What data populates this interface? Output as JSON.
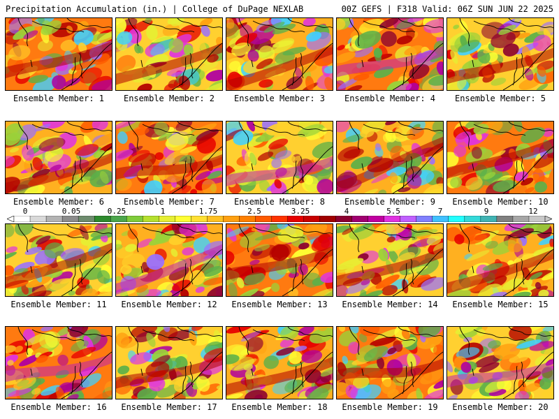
{
  "header": {
    "left": "Precipitation Accumulation (in.) | College of DuPage NEXLAB",
    "right": "00Z GEFS | F318 Valid: 06Z SUN JUN 22 2025"
  },
  "colorbar": {
    "tick_labels": [
      "0",
      "0.05",
      "0.25",
      "1",
      "1.75",
      "2.5",
      "3.25",
      "4",
      "5.5",
      "7",
      "9",
      "12"
    ],
    "colors": [
      "#ffffff",
      "#d9d9d9",
      "#b3b3b3",
      "#8c8c8c",
      "#6e8c6e",
      "#2e8b2e",
      "#4ca64c",
      "#7fcc3a",
      "#b5e02e",
      "#e6ef33",
      "#ffff33",
      "#ffe033",
      "#ffc022",
      "#ffa011",
      "#ff7f00",
      "#ff5a00",
      "#ff3300",
      "#e60000",
      "#c80000",
      "#a00000",
      "#8c0030",
      "#a00070",
      "#c000a0",
      "#e033e0",
      "#c060ff",
      "#8080ff",
      "#40c0ff",
      "#22ffff",
      "#33d9d9",
      "#40b3b3",
      "#808080",
      "#a6a6a6",
      "#c8c8c8"
    ]
  },
  "panels": [
    {
      "label": "Ensemble Member: 1"
    },
    {
      "label": "Ensemble Member: 2"
    },
    {
      "label": "Ensemble Member: 3"
    },
    {
      "label": "Ensemble Member: 4"
    },
    {
      "label": "Ensemble Member: 5"
    },
    {
      "label": "Ensemble Member: 6"
    },
    {
      "label": "Ensemble Member: 7"
    },
    {
      "label": "Ensemble Member: 8"
    },
    {
      "label": "Ensemble Member: 9"
    },
    {
      "label": "Ensemble Member: 10"
    },
    {
      "label": "Ensemble Member: 11"
    },
    {
      "label": "Ensemble Member: 12"
    },
    {
      "label": "Ensemble Member: 13"
    },
    {
      "label": "Ensemble Member: 14"
    },
    {
      "label": "Ensemble Member: 15"
    },
    {
      "label": "Ensemble Member: 16"
    },
    {
      "label": "Ensemble Member: 17"
    },
    {
      "label": "Ensemble Member: 18"
    },
    {
      "label": "Ensemble Member: 19"
    },
    {
      "label": "Ensemble Member: 20"
    }
  ]
}
